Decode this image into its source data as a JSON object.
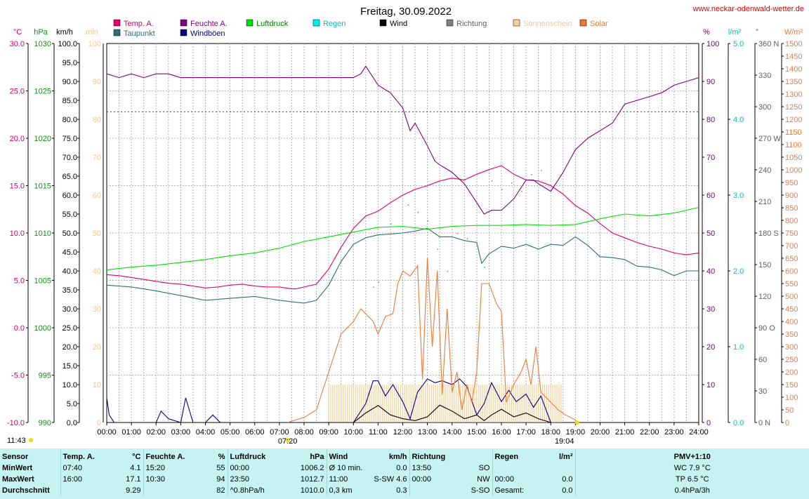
{
  "title": "Freitag, 30.09.2022",
  "website": "www.neckar-odenwald-wetter.de",
  "legend": [
    {
      "label": "Temp. A.",
      "color": "#e0006f",
      "text_color": "#d0006f"
    },
    {
      "label": "Taupunkt",
      "color": "#2f6f6f",
      "text_color": "#2f6f6f"
    },
    {
      "label": "Feuchte A.",
      "color": "#800080",
      "text_color": "#800080"
    },
    {
      "label": "Windböen",
      "color": "#000080",
      "text_color": "#000080"
    },
    {
      "label": "Luftdruck",
      "color": "#00e000",
      "text_color": "#008000"
    },
    {
      "label": "Regen",
      "color": "#00f0f0",
      "text_color": "#00c0c0"
    },
    {
      "label": "Wind",
      "color": "#000000",
      "text_color": "#000000"
    },
    {
      "label": "Richtung",
      "color": "#808080",
      "text_color": "#606060"
    },
    {
      "label": "Sonnenschein",
      "color": "#f8d098",
      "text_color": "#f0c890"
    },
    {
      "label": "Solar",
      "color": "#f07838",
      "text_color": "#f07838"
    }
  ],
  "axes": {
    "temp": {
      "unit": "°C",
      "ticks": [
        "30.0",
        "25.0",
        "20.0",
        "15.0",
        "10.0",
        "5.0",
        "0.0",
        "-5.0",
        "-10.0"
      ]
    },
    "pressure": {
      "unit": "hPa",
      "ticks": [
        "1030",
        "1025",
        "1020",
        "1015",
        "1010",
        "1005",
        "1000",
        "995",
        "990"
      ]
    },
    "wind": {
      "unit": "km/h",
      "ticks": [
        "100.0",
        "95.0",
        "90.0",
        "85.0",
        "80.0",
        "75.0",
        "70.0",
        "65.0",
        "60.0",
        "55.0",
        "50.0",
        "45.0",
        "40.0",
        "35.0",
        "30.0",
        "25.0",
        "20.0",
        "15.0",
        "10.0",
        "5.0",
        "0.0"
      ]
    },
    "sun": {
      "unit": "min",
      "ticks": [
        "100",
        "90",
        "80",
        "70",
        "60",
        "50",
        "40",
        "30",
        "20",
        "10",
        "0"
      ]
    },
    "humidity": {
      "unit": "%",
      "ticks": [
        "100",
        "90",
        "80",
        "70",
        "60",
        "50",
        "40",
        "30",
        "20",
        "10",
        "0"
      ]
    },
    "rain": {
      "unit": "l/m²",
      "ticks": [
        "5.0",
        "4.0",
        "3.0",
        "2.0",
        "1.0",
        "0.0"
      ]
    },
    "direction": {
      "unit": "°",
      "ticks": [
        "360 N",
        "330",
        "300",
        "270 W",
        "240",
        "210",
        "180 S",
        "150",
        "120",
        "90 O",
        "60",
        "30",
        "0 N"
      ]
    },
    "solar": {
      "unit": "W/m²",
      "ticks": [
        "1500",
        "1450",
        "1400",
        "1350",
        "1300",
        "1250",
        "1200",
        "1150",
        "1100",
        "1050",
        "1000",
        "950",
        "900",
        "850",
        "800",
        "750",
        "700",
        "650",
        "600",
        "550",
        "500",
        "450",
        "400",
        "350",
        "300",
        "250",
        "200",
        "150",
        "100",
        "50",
        "0"
      ]
    },
    "x_ticks": [
      "00:00",
      "01:00",
      "02:00",
      "03:00",
      "04:00",
      "05:00",
      "06:00",
      "07:00",
      "08:00",
      "09:00",
      "10:00",
      "11:00",
      "12:00",
      "13:00",
      "14:00",
      "15:00",
      "16:00",
      "17:00",
      "18:00",
      "19:00",
      "20:00",
      "21:00",
      "22:00",
      "23:00",
      "24:00"
    ]
  },
  "sun_info": {
    "moon_time": "11:43",
    "sunrise": "07:20",
    "sunset": "19:04"
  },
  "chart_data": {
    "type": "line",
    "x_unit": "hours",
    "x_range": [
      0,
      24
    ],
    "series": [
      {
        "name": "Temp. A.",
        "axis": "temp",
        "color": "#e0006f",
        "x": [
          0,
          0.5,
          1,
          1.5,
          2,
          2.5,
          3,
          3.5,
          4,
          4.5,
          5,
          5.5,
          6,
          6.5,
          7,
          7.5,
          7.67,
          8,
          8.5,
          9,
          9.5,
          10,
          10.5,
          11,
          11.5,
          12,
          12.5,
          13,
          13.5,
          14,
          14.5,
          15,
          15.5,
          16,
          16.5,
          17,
          17.5,
          18,
          18.5,
          19,
          19.5,
          20,
          20.5,
          21,
          21.5,
          22,
          22.5,
          23,
          23.5,
          24
        ],
        "y": [
          5.6,
          5.5,
          5.3,
          5.1,
          4.9,
          4.7,
          4.6,
          4.4,
          4.2,
          4.3,
          4.5,
          4.6,
          4.4,
          4.3,
          4.3,
          4.1,
          4.1,
          4.3,
          4.6,
          6.2,
          8.5,
          10.5,
          11.8,
          12.3,
          13.2,
          14.0,
          14.6,
          15.0,
          15.5,
          15.8,
          15.6,
          16.2,
          16.7,
          17.1,
          16.2,
          15.6,
          15.5,
          15.0,
          14.1,
          12.9,
          12.1,
          11.0,
          10.0,
          9.5,
          9.0,
          8.6,
          8.3,
          7.9,
          7.7,
          7.9
        ]
      },
      {
        "name": "Taupunkt",
        "axis": "temp",
        "color": "#2f6f6f",
        "x": [
          0,
          1,
          2,
          3,
          4,
          5,
          6,
          7,
          8,
          8.5,
          9,
          9.5,
          10,
          10.5,
          11,
          11.5,
          12,
          12.5,
          13,
          13.5,
          14,
          14.5,
          15,
          15.2,
          15.5,
          16,
          16.5,
          17,
          17.5,
          18,
          18.5,
          19,
          19.5,
          20,
          20.5,
          21,
          21.5,
          22,
          22.5,
          23,
          23.5,
          24
        ],
        "y": [
          4.5,
          4.3,
          3.9,
          3.4,
          2.9,
          3.1,
          3.3,
          2.9,
          2.6,
          2.9,
          4.5,
          7.0,
          8.8,
          9.5,
          9.8,
          9.9,
          10.0,
          10.2,
          10.5,
          9.6,
          9.6,
          9.2,
          9.0,
          6.8,
          7.8,
          8.6,
          8.4,
          8.8,
          8.3,
          8.8,
          8.7,
          9.6,
          8.7,
          7.5,
          7.4,
          7.2,
          6.5,
          6.4,
          6.1,
          5.5,
          6.0,
          6.0
        ]
      },
      {
        "name": "Feuchte A.",
        "axis": "humidity",
        "color": "#800080",
        "x": [
          0,
          0.5,
          1,
          1.5,
          2,
          2.5,
          3,
          3.5,
          4,
          5,
          6,
          7,
          8,
          9,
          10,
          10.3,
          10.5,
          10.8,
          11,
          11.5,
          12,
          12.3,
          12.5,
          13,
          13.3,
          13.5,
          14,
          14.5,
          15,
          15.3,
          15.6,
          16,
          16.5,
          17,
          17.3,
          17.5,
          18,
          18.5,
          19,
          19.5,
          20,
          20.5,
          21,
          21.5,
          22,
          22.5,
          23,
          23.5,
          24
        ],
        "y": [
          92,
          91,
          92,
          91,
          92,
          92,
          91,
          91,
          91,
          91,
          91,
          91,
          91,
          91,
          91,
          92,
          94,
          91,
          89,
          87,
          83,
          77,
          79,
          73,
          69,
          68,
          66,
          63,
          58,
          55,
          56,
          56,
          59,
          64,
          64,
          63,
          61,
          66,
          72,
          75,
          77,
          79,
          84,
          85,
          86,
          87,
          89,
          90,
          91
        ]
      },
      {
        "name": "Luftdruck",
        "axis": "pressure",
        "color": "#00e000",
        "x": [
          0,
          1,
          2,
          3,
          4,
          5,
          6,
          7,
          8,
          9,
          10,
          11,
          12,
          13,
          14,
          15,
          16,
          17,
          18,
          19,
          20,
          21,
          22,
          23,
          24
        ],
        "y": [
          1006.1,
          1006.4,
          1006.6,
          1006.9,
          1007.2,
          1007.6,
          1007.9,
          1008.4,
          1009.1,
          1009.6,
          1010.1,
          1010.6,
          1010.7,
          1010.4,
          1010.7,
          1010.8,
          1010.8,
          1010.9,
          1010.8,
          1010.9,
          1011.5,
          1012.0,
          1011.8,
          1012.1,
          1012.7
        ]
      },
      {
        "name": "Windböen",
        "axis": "wind",
        "color": "#000080",
        "x": [
          0,
          0.1,
          0.3,
          2,
          2.2,
          2.5,
          3,
          3.2,
          3.5,
          4,
          4.3,
          4.6,
          5,
          9,
          10,
          10.5,
          10.8,
          11,
          11.3,
          11.6,
          12,
          12.3,
          12.6,
          13,
          13.3,
          13.6,
          14,
          14.3,
          14.6,
          15,
          15.3,
          15.6,
          16,
          16.3,
          16.6,
          17,
          17.3,
          17.6,
          18
        ],
        "y": [
          6.5,
          2.0,
          0,
          0,
          3.0,
          1.0,
          0,
          6.5,
          0,
          0,
          2.0,
          0,
          0,
          0,
          0,
          5.0,
          11.0,
          11.0,
          7.0,
          10.0,
          5.5,
          1.0,
          8.0,
          11.5,
          10.5,
          11.0,
          10.0,
          11.5,
          9.5,
          2.0,
          5.0,
          10.5,
          5.5,
          8.5,
          5.5,
          7.5,
          4.0,
          7.0,
          0
        ]
      },
      {
        "name": "Wind",
        "axis": "wind",
        "color": "#000000",
        "x": [
          0,
          9,
          10,
          10.5,
          11,
          11.5,
          12,
          12.5,
          13,
          13.5,
          14,
          14.5,
          15,
          15.3,
          15.6,
          16,
          16.5,
          17,
          17.5,
          18
        ],
        "y": [
          0,
          0,
          0,
          2.5,
          4.5,
          2.0,
          1.0,
          0.5,
          1.5,
          4.6,
          3.0,
          1.0,
          2.0,
          0.5,
          2.0,
          3.5,
          1.5,
          2.5,
          1.0,
          0
        ]
      },
      {
        "name": "Solar",
        "axis": "solar",
        "color": "#f07838",
        "x": [
          7.33,
          8,
          8.5,
          9,
          9.5,
          10,
          10.3,
          10.6,
          10.8,
          11,
          11.3,
          11.6,
          11.8,
          12,
          12.3,
          12.6,
          12.8,
          13,
          13.2,
          13.4,
          13.6,
          13.8,
          14,
          14.2,
          14.4,
          14.6,
          14.8,
          15,
          15.2,
          15.5,
          15.8,
          16,
          16.2,
          16.5,
          16.8,
          17,
          17.2,
          17.4,
          17.6,
          17.8,
          18,
          18.3,
          18.6,
          19,
          19.07
        ],
        "y": [
          0,
          20,
          50,
          200,
          350,
          400,
          450,
          420,
          400,
          350,
          420,
          430,
          550,
          600,
          580,
          620,
          170,
          650,
          300,
          600,
          110,
          450,
          120,
          200,
          50,
          150,
          80,
          200,
          550,
          550,
          470,
          440,
          80,
          150,
          200,
          250,
          150,
          300,
          120,
          100,
          80,
          50,
          30,
          10,
          0
        ]
      },
      {
        "name": "Sonnenschein",
        "axis": "sun",
        "color": "#f8d098",
        "x": [
          9,
          18.5
        ],
        "y": [
          10,
          10
        ]
      }
    ],
    "averages": {
      "temp": 9.29,
      "humidity": 82,
      "pressure": 1010.0,
      "wind": 0.3
    }
  },
  "stats": {
    "headers": {
      "sensor": "Sensor",
      "temp": "Temp. A.",
      "temp_unit": "°C",
      "hum": "Feuchte A.",
      "hum_unit": "%",
      "press": "Luftdruck",
      "press_unit": "hPa",
      "wind": "Wind",
      "wind_unit": "km/h",
      "dir": "Richtung",
      "rain": "Regen",
      "rain_unit": "l/m²",
      "pmv": "PMV+1:10"
    },
    "rows": [
      {
        "label": "MinWert",
        "temp_time": "07:40",
        "temp_val": "4.1",
        "hum_time": "15:20",
        "hum_val": "55",
        "press_time": "00:00",
        "press_val": "1006.2",
        "wind_time": "Ø 10 min.",
        "wind_val": "0.0",
        "dir_time": "13:50",
        "dir_val": "SO",
        "rain_time": "",
        "rain_val": "",
        "pmv": "WC 7.9 °C"
      },
      {
        "label": "MaxWert",
        "temp_time": "16:00",
        "temp_val": "17.1",
        "hum_time": "10:30",
        "hum_val": "94",
        "press_time": "23:50",
        "press_val": "1012.7",
        "wind_time": "11:00",
        "wind_val": "S-SW 4.6",
        "dir_time": "00:00",
        "dir_val": "NW",
        "rain_time": "00:00",
        "rain_val": "0.0",
        "pmv": "TP 6.5 °C"
      },
      {
        "label": "Durchschnitt",
        "temp_time": "",
        "temp_val": "9.29",
        "hum_time": "",
        "hum_val": "82",
        "press_time": "^0.8hPa/h",
        "press_val": "1010.0",
        "wind_time": "0,3 km",
        "wind_val": "0.3",
        "dir_time": "",
        "dir_val": "S-SO",
        "rain_time": "Gesamt:",
        "rain_val": "0.0",
        "pmv": "0.4hPa/3h"
      }
    ]
  }
}
